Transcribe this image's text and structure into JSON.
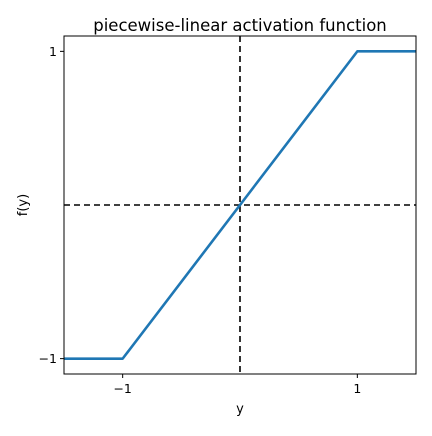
{
  "chart_data": {
    "type": "line",
    "title": "piecewise-linear activation function",
    "xlabel": "y",
    "ylabel": "f(y)",
    "xlim": [
      -1.5,
      1.5
    ],
    "ylim": [
      -1.1,
      1.1
    ],
    "xticks": [
      {
        "value": -1,
        "label": "−1"
      },
      {
        "value": 1,
        "label": "1"
      }
    ],
    "yticks": [
      {
        "value": -1,
        "label": "−1"
      },
      {
        "value": 1,
        "label": "1"
      }
    ],
    "grid": false,
    "reference_lines": [
      {
        "orientation": "vertical",
        "value": 0,
        "style": "dashed",
        "color": "#000000"
      },
      {
        "orientation": "horizontal",
        "value": 0,
        "style": "dashed",
        "color": "#000000"
      }
    ],
    "series": [
      {
        "color": "#1f77b4",
        "x": [
          -1.5,
          -1,
          1,
          1.5
        ],
        "y": [
          -1,
          -1,
          1,
          1
        ]
      }
    ]
  }
}
